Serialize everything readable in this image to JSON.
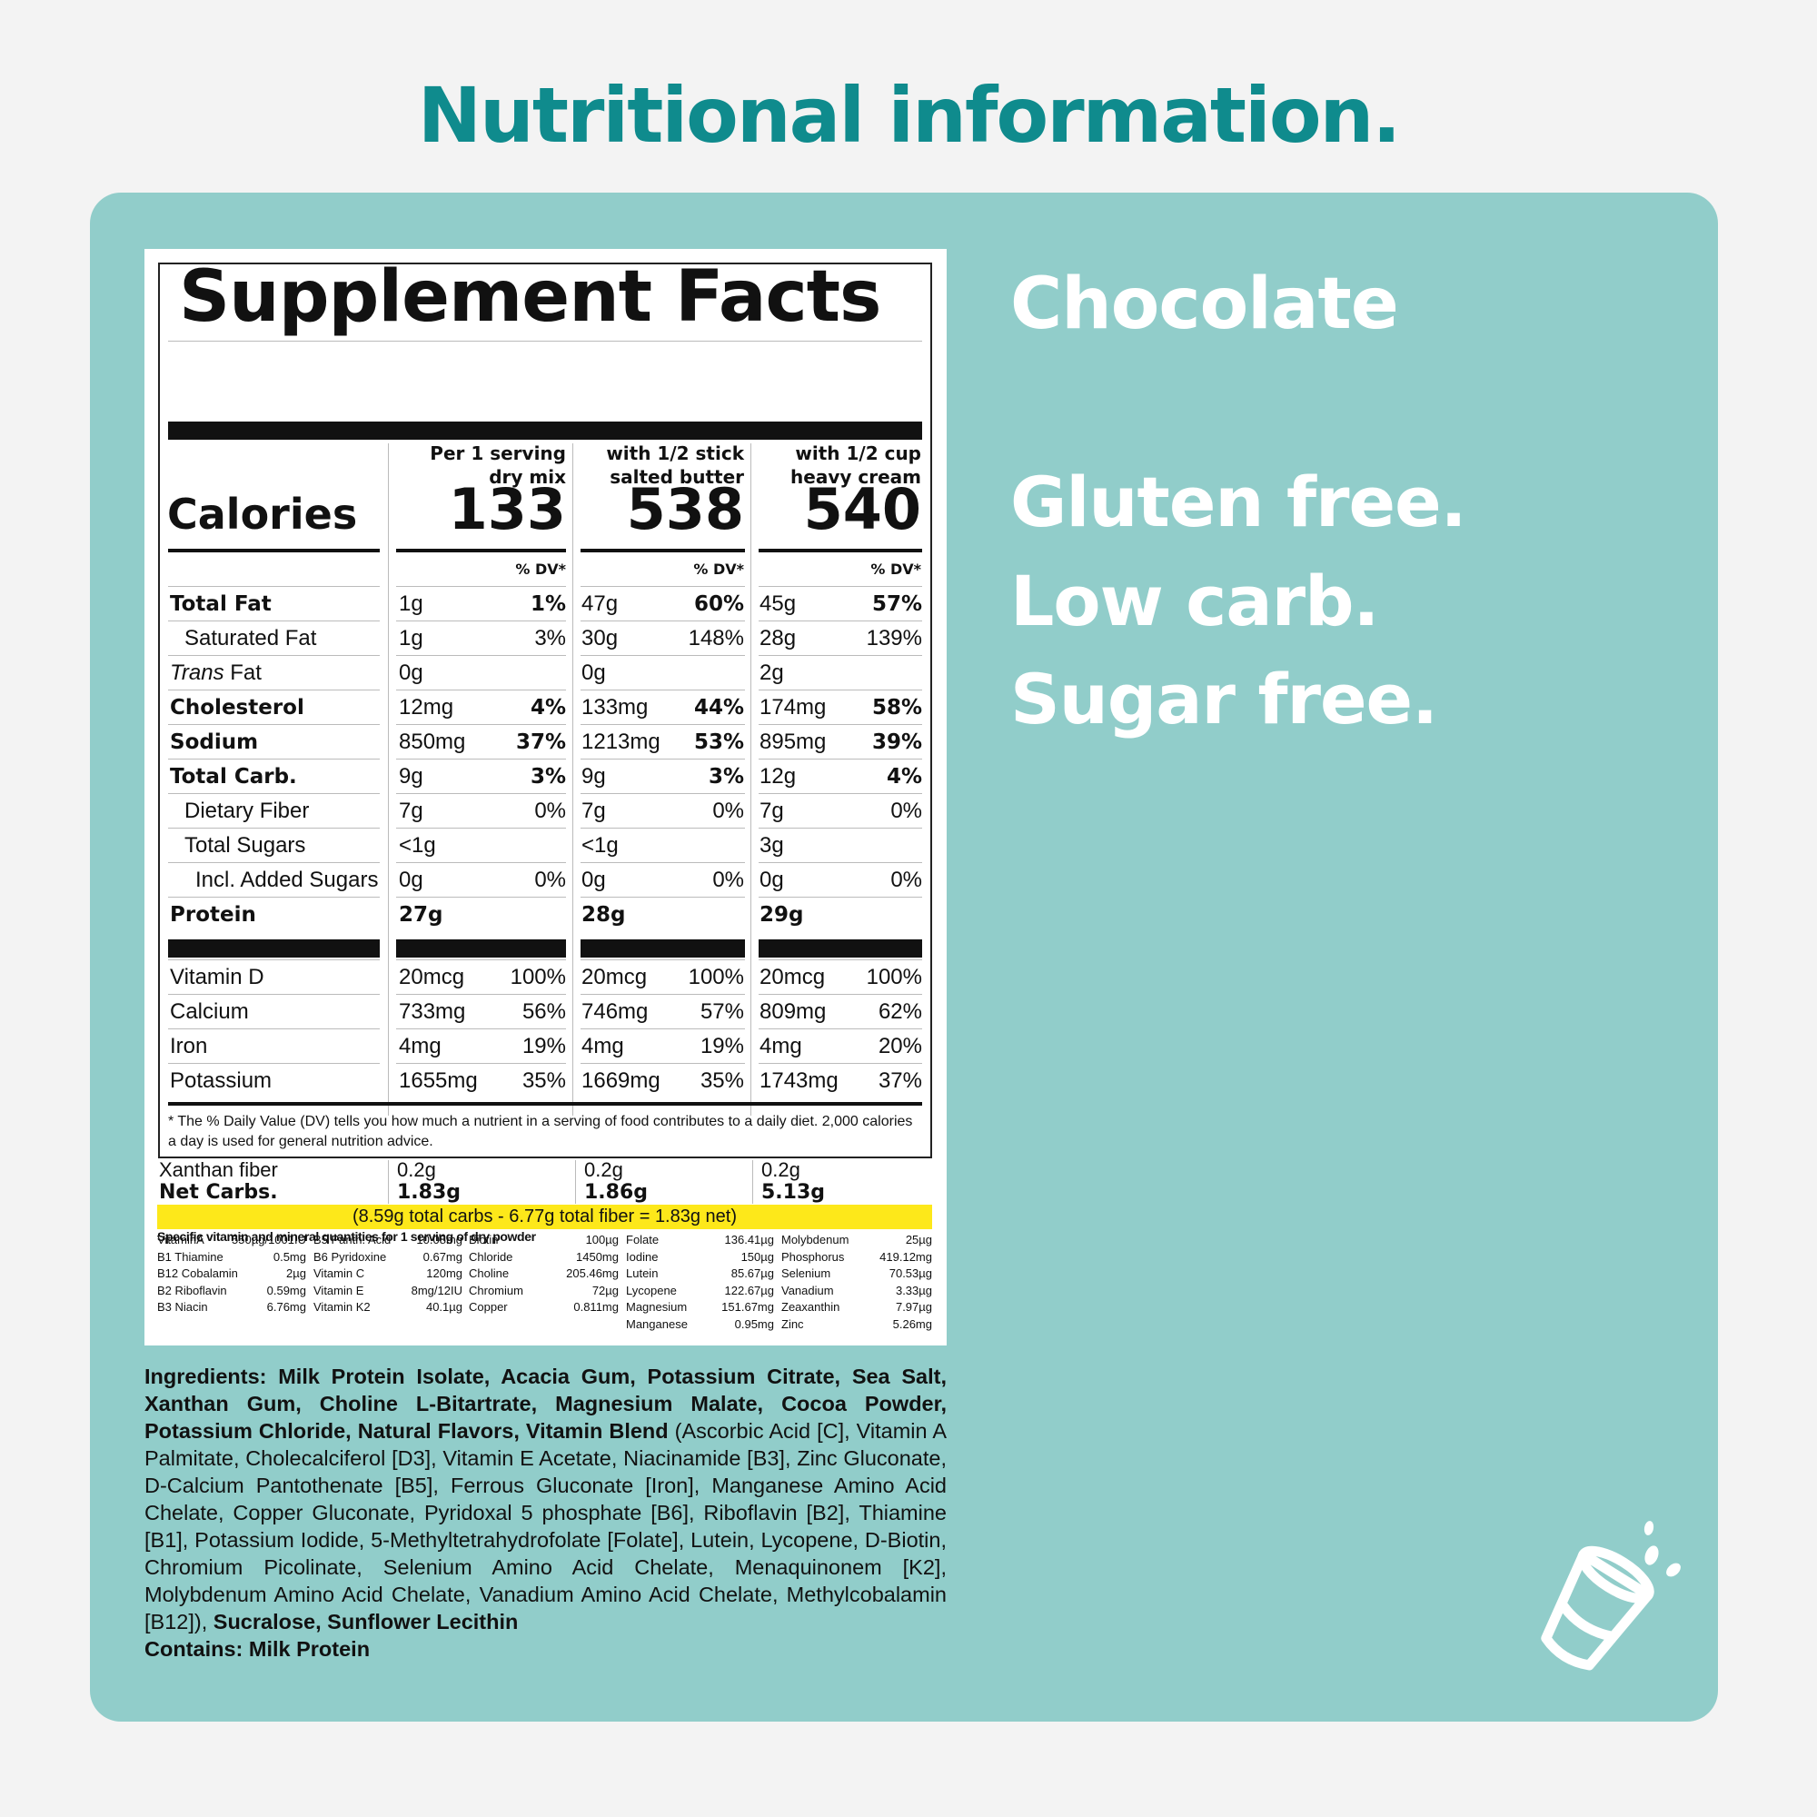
{
  "heading": "Nutritional information.",
  "flavor": "Chocolate",
  "claims": [
    "Gluten free.",
    "Low carb.",
    "Sugar free."
  ],
  "label": {
    "title": "Supplement Facts",
    "calories_label": "Calories",
    "columns": [
      {
        "line1": "Per 1 serving",
        "line2": "dry mix",
        "calories": "133",
        "dv_header": "% DV*"
      },
      {
        "line1": "with 1/2 stick",
        "line2": "salted butter",
        "calories": "538",
        "dv_header": "% DV*"
      },
      {
        "line1": "with 1/2 cup",
        "line2": "heavy cream",
        "calories": "540",
        "dv_header": "% DV*"
      }
    ],
    "nutrients": [
      {
        "name": "Total Fat",
        "bold": true,
        "indent": 0,
        "values": [
          [
            "1g",
            "1%"
          ],
          [
            "47g",
            "60%"
          ],
          [
            "45g",
            "57%"
          ]
        ]
      },
      {
        "name": "Saturated Fat",
        "bold": false,
        "indent": 1,
        "values": [
          [
            "1g",
            "3%"
          ],
          [
            "30g",
            "148%"
          ],
          [
            "28g",
            "139%"
          ]
        ]
      },
      {
        "name_italic": "Trans",
        "name": " Fat",
        "bold": false,
        "indent": 0,
        "values": [
          [
            "0g",
            ""
          ],
          [
            "0g",
            ""
          ],
          [
            "2g",
            ""
          ]
        ]
      },
      {
        "name": "Cholesterol",
        "bold": true,
        "indent": 0,
        "values": [
          [
            "12mg",
            "4%"
          ],
          [
            "133mg",
            "44%"
          ],
          [
            "174mg",
            "58%"
          ]
        ]
      },
      {
        "name": "Sodium",
        "bold": true,
        "indent": 0,
        "values": [
          [
            "850mg",
            "37%"
          ],
          [
            "1213mg",
            "53%"
          ],
          [
            "895mg",
            "39%"
          ]
        ]
      },
      {
        "name": "Total Carb.",
        "bold": true,
        "indent": 0,
        "values": [
          [
            "9g",
            "3%"
          ],
          [
            "9g",
            "3%"
          ],
          [
            "12g",
            "4%"
          ]
        ]
      },
      {
        "name": "Dietary Fiber",
        "bold": false,
        "indent": 1,
        "values": [
          [
            "7g",
            "0%"
          ],
          [
            "7g",
            "0%"
          ],
          [
            "7g",
            "0%"
          ]
        ]
      },
      {
        "name": "Total Sugars",
        "bold": false,
        "indent": 1,
        "values": [
          [
            "<1g",
            ""
          ],
          [
            "<1g",
            ""
          ],
          [
            "3g",
            ""
          ]
        ]
      },
      {
        "name": "Incl. Added Sugars",
        "bold": false,
        "indent": 2,
        "values": [
          [
            "0g",
            "0%"
          ],
          [
            "0g",
            "0%"
          ],
          [
            "0g",
            "0%"
          ]
        ]
      },
      {
        "name": "Protein",
        "bold": true,
        "indent": 0,
        "values": [
          [
            "27g",
            ""
          ],
          [
            "28g",
            ""
          ],
          [
            "29g",
            ""
          ]
        ]
      }
    ],
    "vitamins": [
      {
        "name": "Vitamin D",
        "values": [
          [
            "20mcg",
            "100%"
          ],
          [
            "20mcg",
            "100%"
          ],
          [
            "20mcg",
            "100%"
          ]
        ]
      },
      {
        "name": "Calcium",
        "values": [
          [
            "733mg",
            "56%"
          ],
          [
            "746mg",
            "57%"
          ],
          [
            "809mg",
            "62%"
          ]
        ]
      },
      {
        "name": "Iron",
        "values": [
          [
            "4mg",
            "19%"
          ],
          [
            "4mg",
            "19%"
          ],
          [
            "4mg",
            "20%"
          ]
        ]
      },
      {
        "name": "Potassium",
        "values": [
          [
            "1655mg",
            "35%"
          ],
          [
            "1669mg",
            "35%"
          ],
          [
            "1743mg",
            "37%"
          ]
        ]
      }
    ],
    "footnote": "* The % Daily Value (DV) tells you how much a nutrient in a serving of food contributes to a daily diet. 2,000 calories a day is used for general nutrition advice.",
    "xanthan_label": "Xanthan fiber",
    "xanthan_values": [
      "0.2g",
      "0.2g",
      "0.2g"
    ],
    "net_carbs_label": "Net Carbs.",
    "net_carbs_values": [
      "1.83g",
      "1.86g",
      "5.13g"
    ],
    "net_calc": "(8.59g total carbs - 6.77g total fiber = 1.83g net)",
    "specific_title": "Specific vitamin and mineral quantities for 1 serving of dry powder",
    "micros": [
      [
        [
          "VitaminA",
          "550µg/1001IU"
        ],
        [
          "B1 Thiamine",
          "0.5mg"
        ],
        [
          "B12 Cobalamin",
          "2µg"
        ],
        [
          "B2 Riboflavin",
          "0.59mg"
        ],
        [
          "B3 Niacin",
          "6.76mg"
        ]
      ],
      [
        [
          "B5 Panth. Acid",
          "10.08mg"
        ],
        [
          "B6 Pyridoxine",
          "0.67mg"
        ],
        [
          "Vitamin C",
          "120mg"
        ],
        [
          "Vitamin E",
          "8mg/12IU"
        ],
        [
          "Vitamin K2",
          "40.1µg"
        ]
      ],
      [
        [
          "Biotin",
          "100µg"
        ],
        [
          "Chloride",
          "1450mg"
        ],
        [
          "Choline",
          "205.46mg"
        ],
        [
          "Chromium",
          "72µg"
        ],
        [
          "Copper",
          "0.811mg"
        ]
      ],
      [
        [
          "Folate",
          "136.41µg"
        ],
        [
          "Iodine",
          "150µg"
        ],
        [
          "Lutein",
          "85.67µg"
        ],
        [
          "Lycopene",
          "122.67µg"
        ],
        [
          "Magnesium",
          "151.67mg"
        ],
        [
          "Manganese",
          "0.95mg"
        ]
      ],
      [
        [
          "Molybdenum",
          "25µg"
        ],
        [
          "Phosphorus",
          "419.12mg"
        ],
        [
          "Selenium",
          "70.53µg"
        ],
        [
          "Vanadium",
          "3.33µg"
        ],
        [
          "Zeaxanthin",
          "7.97µg"
        ],
        [
          "Zinc",
          "5.26mg"
        ]
      ]
    ]
  },
  "ingredients": {
    "bold1": "Ingredients: Milk Protein Isolate, Acacia Gum, Potassium Citrate, Sea Salt, Xanthan Gum, Choline L-Bitartrate, Magnesium Malate, Cocoa Powder, Potassium Chloride, Natural Flavors, Vitamin Blend",
    "normal": " (Ascorbic Acid [C], Vitamin A Palmitate, Cholecalciferol [D3], Vitamin E Acetate, Niacinamide [B3], Zinc Gluconate, D-Calcium Pantothenate [B5], Ferrous Gluconate [Iron], Manganese Amino Acid Chelate, Copper Gluconate, Pyridoxal 5 phosphate [B6], Riboflavin [B2], Thiamine [B1], Potassium Iodide, 5-Methyltetrahydrofolate [Folate], Lutein, Lycopene, D-Biotin, Chromium Picolinate, Selenium Amino Acid Chelate, Menaquinonem [K2], Molybdenum Amino Acid Chelate, Vanadium Amino Acid Chelate, Methylcobalamin [B12]), ",
    "bold2": "Sucralose, Sunflower Lecithin",
    "contains": "Contains: Milk Protein"
  },
  "icons": {
    "corner": "shaker-cup-icon"
  },
  "colors": {
    "heading": "#0f8b8d",
    "panel": "#91cdca",
    "highlight": "#fde81a"
  }
}
